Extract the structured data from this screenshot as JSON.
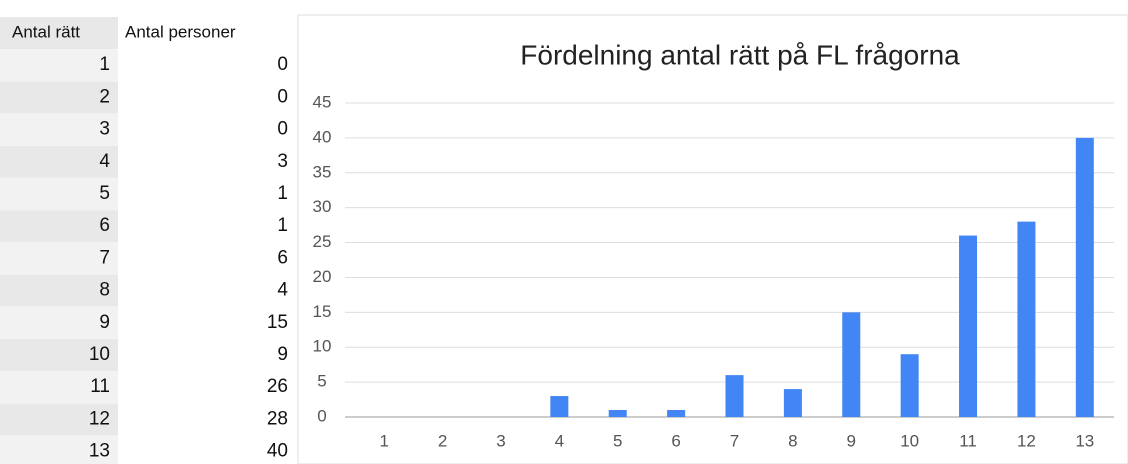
{
  "table": {
    "header": [
      "Antal rätt",
      "Antal personer"
    ],
    "rows": [
      [
        1,
        0
      ],
      [
        2,
        0
      ],
      [
        3,
        0
      ],
      [
        4,
        3
      ],
      [
        5,
        1
      ],
      [
        6,
        1
      ],
      [
        7,
        6
      ],
      [
        8,
        4
      ],
      [
        9,
        15
      ],
      [
        10,
        9
      ],
      [
        11,
        26
      ],
      [
        12,
        28
      ],
      [
        13,
        40
      ]
    ]
  },
  "chart_data": {
    "type": "bar",
    "title": "Fördelning antal rätt på FL frågorna",
    "categories": [
      "1",
      "2",
      "3",
      "4",
      "5",
      "6",
      "7",
      "8",
      "9",
      "10",
      "11",
      "12",
      "13"
    ],
    "values": [
      0,
      0,
      0,
      3,
      1,
      1,
      6,
      4,
      15,
      9,
      26,
      28,
      40
    ],
    "color": "#4285f4",
    "ylim": [
      0,
      45
    ],
    "yticks": [
      0,
      5,
      10,
      15,
      20,
      25,
      30,
      35,
      40,
      45
    ],
    "grid": true
  }
}
